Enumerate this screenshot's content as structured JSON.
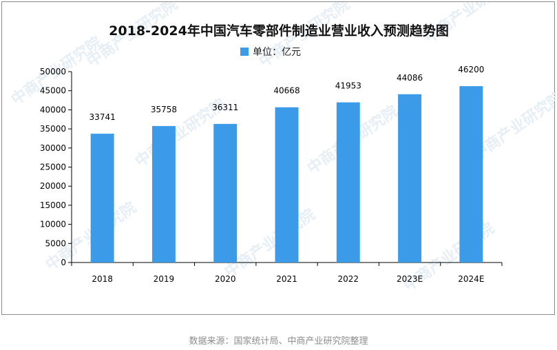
{
  "chart_data": {
    "type": "bar",
    "title": "2018-2024年中国汽车零部件制造业营业收入预测趋势图",
    "legend": {
      "label": "单位：亿元",
      "color": "#3c9be8",
      "placement": "top-center"
    },
    "categories": [
      "2018",
      "2019",
      "2020",
      "2021",
      "2022",
      "2023E",
      "2024E"
    ],
    "series": [
      {
        "values": [
          33741,
          35758,
          36311,
          40668,
          41953,
          44086,
          46200
        ]
      }
    ],
    "data_labels": [
      "33741",
      "35758",
      "36311",
      "40668",
      "41953",
      "44086",
      "46200"
    ],
    "ylim": [
      0,
      50000
    ],
    "yticks": [
      0,
      5000,
      10000,
      15000,
      20000,
      25000,
      30000,
      35000,
      40000,
      45000,
      50000
    ],
    "grid": false,
    "bar_color": "#3c9be8",
    "watermark": "中商产业研究院"
  },
  "source": "数据来源：国家统计局、中商产业研究院整理"
}
